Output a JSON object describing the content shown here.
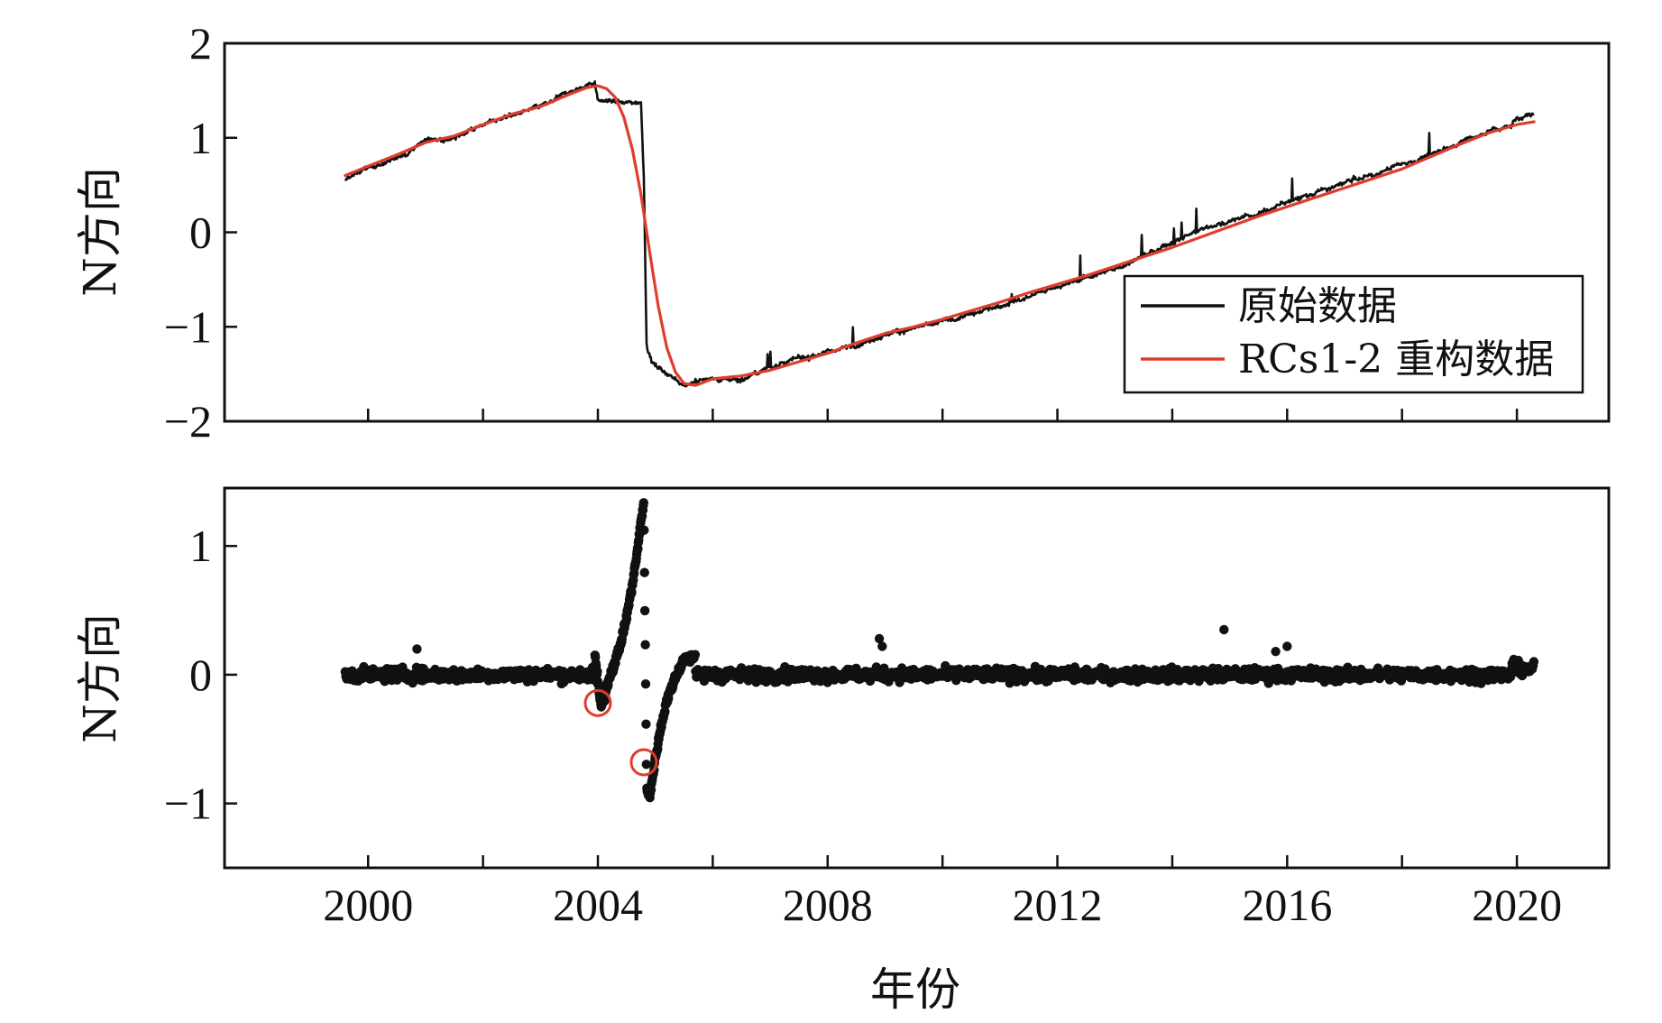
{
  "chart_data": [
    {
      "type": "line",
      "ylabel": "N方向",
      "xlim": [
        1997.5,
        2021.6
      ],
      "ylim": [
        -2,
        2
      ],
      "yticks": [
        2,
        1,
        0,
        -1,
        -2
      ],
      "ytick_labels": [
        "2",
        "1",
        "0",
        "−1",
        "−2"
      ],
      "xticks": [
        2000,
        2002,
        2004,
        2006,
        2008,
        2010,
        2012,
        2014,
        2016,
        2018,
        2020
      ],
      "grid": false,
      "legend": {
        "placement": "center-right",
        "entries": [
          {
            "label": "原始数据",
            "color": "#111111"
          },
          {
            "label": "RCs1-2 重构数据",
            "color": "#e03c2e"
          }
        ]
      },
      "series": [
        {
          "name": "原始数据",
          "color": "#111111",
          "style": "noisy-line",
          "x": [
            1999.6,
            2000.0,
            2000.5,
            2001.0,
            2001.5,
            2002.0,
            2002.5,
            2003.0,
            2003.5,
            2003.95,
            2004.0,
            2004.5,
            2004.75,
            2004.8,
            2004.85,
            2004.95,
            2005.2,
            2005.5,
            2005.8,
            2006.0,
            2006.5,
            2007.0,
            2007.5,
            2008.0,
            2008.5,
            2009.0,
            2009.5,
            2010.0,
            2010.5,
            2011.0,
            2011.5,
            2012.0,
            2012.5,
            2013.0,
            2013.5,
            2014.0,
            2014.5,
            2015.0,
            2015.5,
            2016.0,
            2016.5,
            2017.0,
            2017.5,
            2018.0,
            2018.5,
            2019.0,
            2019.5,
            2019.9,
            2020.0,
            2020.3
          ],
          "y": [
            0.55,
            0.68,
            0.78,
            0.98,
            1.0,
            1.15,
            1.25,
            1.32,
            1.48,
            1.6,
            1.4,
            1.37,
            1.38,
            0.6,
            -1.2,
            -1.38,
            -1.5,
            -1.62,
            -1.57,
            -1.55,
            -1.56,
            -1.42,
            -1.33,
            -1.27,
            -1.18,
            -1.08,
            -1.02,
            -0.95,
            -0.88,
            -0.78,
            -0.68,
            -0.58,
            -0.48,
            -0.38,
            -0.26,
            -0.1,
            0.03,
            0.12,
            0.2,
            0.32,
            0.42,
            0.52,
            0.6,
            0.72,
            0.82,
            0.95,
            1.07,
            1.12,
            1.22,
            1.24
          ]
        },
        {
          "name": "RCs1-2 重构数据",
          "color": "#e03c2e",
          "style": "smooth-line",
          "x": [
            1999.6,
            2000.0,
            2000.5,
            2001.0,
            2001.5,
            2002.0,
            2002.5,
            2003.0,
            2003.5,
            2003.8,
            2004.0,
            2004.15,
            2004.3,
            2004.45,
            2004.6,
            2004.75,
            2004.9,
            2005.05,
            2005.2,
            2005.35,
            2005.5,
            2005.7,
            2006.0,
            2006.5,
            2007.0,
            2007.5,
            2008.0,
            2008.5,
            2009.0,
            2009.5,
            2010.0,
            2010.5,
            2011.0,
            2011.5,
            2012.0,
            2012.5,
            2013.0,
            2013.5,
            2014.0,
            2014.5,
            2015.0,
            2015.5,
            2016.0,
            2016.5,
            2017.0,
            2017.5,
            2018.0,
            2018.5,
            2019.0,
            2019.5,
            2020.0,
            2020.3
          ],
          "y": [
            0.6,
            0.7,
            0.82,
            0.95,
            1.02,
            1.14,
            1.25,
            1.33,
            1.46,
            1.53,
            1.55,
            1.52,
            1.43,
            1.22,
            0.88,
            0.4,
            -0.2,
            -0.78,
            -1.22,
            -1.48,
            -1.6,
            -1.62,
            -1.55,
            -1.52,
            -1.46,
            -1.37,
            -1.28,
            -1.17,
            -1.07,
            -1.0,
            -0.92,
            -0.83,
            -0.74,
            -0.64,
            -0.55,
            -0.46,
            -0.36,
            -0.26,
            -0.16,
            -0.05,
            0.06,
            0.17,
            0.27,
            0.37,
            0.47,
            0.57,
            0.67,
            0.8,
            0.93,
            1.05,
            1.14,
            1.17
          ]
        }
      ]
    },
    {
      "type": "scatter",
      "ylabel": "N方向",
      "xlabel": "年份",
      "xlim": [
        1997.5,
        2021.6
      ],
      "ylim": [
        -1.5,
        1.45
      ],
      "yticks": [
        1,
        0,
        -1
      ],
      "ytick_labels": [
        "1",
        "0",
        "−1"
      ],
      "xticks": [
        2000,
        2002,
        2004,
        2006,
        2008,
        2010,
        2012,
        2014,
        2016,
        2018,
        2020
      ],
      "xtick_labels": [
        "2000",
        "",
        "2004",
        "",
        "2008",
        "",
        "2012",
        "",
        "2016",
        "",
        "2020"
      ],
      "grid": false,
      "series": [
        {
          "name": "",
          "color": "#111111",
          "marker": "dot",
          "baseline_noise": 0.05,
          "x": [
            2003.95,
            2004.05,
            2004.1,
            2004.15,
            2004.2,
            2004.3,
            2004.4,
            2004.5,
            2004.6,
            2004.7,
            2004.75,
            2004.8,
            2004.85,
            2004.9,
            2005.0,
            2005.1,
            2005.2,
            2005.35,
            2005.5,
            2005.7
          ],
          "y": [
            0.15,
            -0.25,
            -0.2,
            -0.1,
            -0.02,
            0.1,
            0.25,
            0.45,
            0.7,
            1.0,
            1.2,
            1.33,
            -0.9,
            -0.95,
            -0.65,
            -0.4,
            -0.2,
            -0.02,
            0.12,
            0.15
          ],
          "outliers_x": [
            2000.85,
            2008.9,
            2008.95,
            2014.9,
            2016.0,
            2015.8
          ],
          "outliers_y": [
            0.2,
            0.28,
            0.22,
            0.35,
            0.22,
            0.18
          ]
        }
      ],
      "annotations": [
        {
          "shape": "circle",
          "color": "#e03c2e",
          "x": 2004.0,
          "y": -0.22
        },
        {
          "shape": "circle",
          "color": "#e03c2e",
          "x": 2004.8,
          "y": -0.68
        }
      ]
    }
  ]
}
